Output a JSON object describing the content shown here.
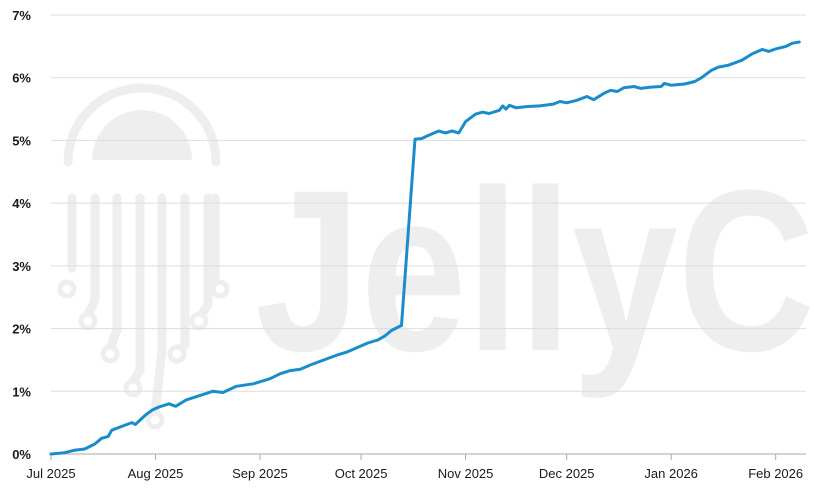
{
  "chart_data": {
    "type": "line",
    "title": "",
    "xlabel": "",
    "ylabel": "",
    "ylim": [
      0,
      7
    ],
    "y_ticks": [
      "0%",
      "1%",
      "2%",
      "3%",
      "4%",
      "5%",
      "6%",
      "7%"
    ],
    "x_ticks": [
      "Jul 2025",
      "Aug 2025",
      "Sep 2025",
      "Oct 2025",
      "Nov 2025",
      "Dec 2025",
      "Jan 2026",
      "Feb 2026"
    ],
    "grid": true,
    "legend": "none",
    "series": [
      {
        "color": "#1a8ccc",
        "points": [
          [
            "2025-07-01",
            0.0
          ],
          [
            "2025-07-05",
            0.02
          ],
          [
            "2025-07-08",
            0.06
          ],
          [
            "2025-07-11",
            0.08
          ],
          [
            "2025-07-14",
            0.16
          ],
          [
            "2025-07-16",
            0.25
          ],
          [
            "2025-07-18",
            0.28
          ],
          [
            "2025-07-19",
            0.38
          ],
          [
            "2025-07-22",
            0.44
          ],
          [
            "2025-07-25",
            0.5
          ],
          [
            "2025-07-26",
            0.47
          ],
          [
            "2025-07-29",
            0.62
          ],
          [
            "2025-07-31",
            0.7
          ],
          [
            "2025-08-02",
            0.75
          ],
          [
            "2025-08-05",
            0.8
          ],
          [
            "2025-08-07",
            0.76
          ],
          [
            "2025-08-10",
            0.86
          ],
          [
            "2025-08-14",
            0.93
          ],
          [
            "2025-08-18",
            1.0
          ],
          [
            "2025-08-21",
            0.98
          ],
          [
            "2025-08-25",
            1.08
          ],
          [
            "2025-08-30",
            1.12
          ],
          [
            "2025-09-04",
            1.2
          ],
          [
            "2025-09-07",
            1.28
          ],
          [
            "2025-09-10",
            1.33
          ],
          [
            "2025-09-13",
            1.35
          ],
          [
            "2025-09-16",
            1.42
          ],
          [
            "2025-09-20",
            1.5
          ],
          [
            "2025-09-24",
            1.58
          ],
          [
            "2025-09-27",
            1.63
          ],
          [
            "2025-09-30",
            1.7
          ],
          [
            "2025-10-03",
            1.77
          ],
          [
            "2025-10-06",
            1.82
          ],
          [
            "2025-10-08",
            1.88
          ],
          [
            "2025-10-10",
            1.97
          ],
          [
            "2025-10-13",
            2.05
          ],
          [
            "2025-10-17",
            5.02
          ],
          [
            "2025-10-19",
            5.03
          ],
          [
            "2025-10-21",
            5.08
          ],
          [
            "2025-10-24",
            5.15
          ],
          [
            "2025-10-26",
            5.12
          ],
          [
            "2025-10-28",
            5.15
          ],
          [
            "2025-10-30",
            5.12
          ],
          [
            "2025-11-01",
            5.3
          ],
          [
            "2025-11-04",
            5.42
          ],
          [
            "2025-11-06",
            5.45
          ],
          [
            "2025-11-08",
            5.43
          ],
          [
            "2025-11-11",
            5.48
          ],
          [
            "2025-11-12",
            5.55
          ],
          [
            "2025-11-13",
            5.5
          ],
          [
            "2025-11-14",
            5.56
          ],
          [
            "2025-11-16",
            5.52
          ],
          [
            "2025-11-19",
            5.54
          ],
          [
            "2025-11-23",
            5.55
          ],
          [
            "2025-11-27",
            5.58
          ],
          [
            "2025-11-29",
            5.62
          ],
          [
            "2025-12-01",
            5.6
          ],
          [
            "2025-12-04",
            5.64
          ],
          [
            "2025-12-07",
            5.7
          ],
          [
            "2025-12-09",
            5.65
          ],
          [
            "2025-12-12",
            5.75
          ],
          [
            "2025-12-14",
            5.8
          ],
          [
            "2025-12-16",
            5.78
          ],
          [
            "2025-12-18",
            5.84
          ],
          [
            "2025-12-21",
            5.86
          ],
          [
            "2025-12-23",
            5.83
          ],
          [
            "2025-12-26",
            5.85
          ],
          [
            "2025-12-29",
            5.86
          ],
          [
            "2025-12-30",
            5.91
          ],
          [
            "2026-01-01",
            5.88
          ],
          [
            "2026-01-05",
            5.9
          ],
          [
            "2026-01-08",
            5.94
          ],
          [
            "2026-01-10",
            6.0
          ],
          [
            "2026-01-13",
            6.12
          ],
          [
            "2026-01-15",
            6.17
          ],
          [
            "2026-01-18",
            6.2
          ],
          [
            "2026-01-22",
            6.28
          ],
          [
            "2026-01-25",
            6.38
          ],
          [
            "2026-01-28",
            6.45
          ],
          [
            "2026-01-30",
            6.42
          ],
          [
            "2026-02-01",
            6.46
          ],
          [
            "2026-02-04",
            6.5
          ],
          [
            "2026-02-06",
            6.55
          ],
          [
            "2026-02-08",
            6.57
          ]
        ]
      }
    ]
  },
  "watermark": {
    "text": "JellyC",
    "color": "#eeeeee"
  }
}
